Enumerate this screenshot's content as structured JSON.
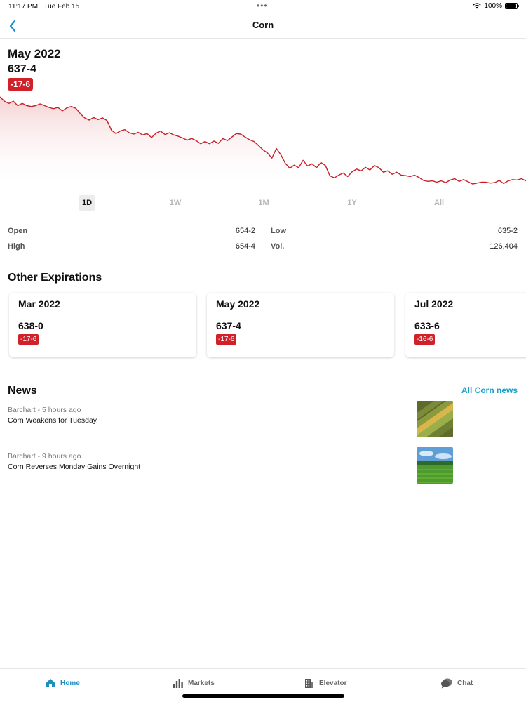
{
  "status_bar": {
    "time": "11:17 PM",
    "date": "Tue Feb 15",
    "battery": "100%"
  },
  "nav": {
    "title": "Corn",
    "back_icon": "chevron-left-icon"
  },
  "header": {
    "contract": "May 2022",
    "price": "637-4",
    "change": "-17-6"
  },
  "chart_data": {
    "type": "area",
    "color": "#c8202a",
    "values": [
      655,
      654,
      653.5,
      654,
      653,
      653.5,
      653,
      652.8,
      653,
      653.4,
      653,
      652.6,
      652.3,
      652.6,
      651.8,
      652.5,
      652.8,
      652.4,
      651.2,
      650.2,
      649.7,
      650.3,
      649.8,
      650.2,
      649.6,
      647.4,
      646.6,
      647.2,
      647.5,
      646.8,
      646.5,
      646.9,
      646.3,
      646.6,
      645.7,
      646.7,
      647.2,
      646.4,
      646.8,
      646.3,
      646,
      645.6,
      645.1,
      645.5,
      645,
      644.3,
      644.8,
      644.3,
      644.9,
      644.4,
      645.5,
      645,
      645.8,
      646.6,
      646.5,
      645.8,
      645.2,
      644.8,
      643.9,
      642.9,
      642.2,
      641,
      643.2,
      641.8,
      639.8,
      638.7,
      639.4,
      638.8,
      640.5,
      639.2,
      639.7,
      638.8,
      640,
      639.3,
      637,
      636.5,
      637.1,
      637.6,
      636.8,
      637.9,
      638.5,
      638.1,
      638.9,
      638.3,
      639.3,
      638.8,
      637.8,
      638.1,
      637.3,
      637.8,
      637.1,
      637,
      636.8,
      637.1,
      636.6,
      635.9,
      635.7,
      635.8,
      635.5,
      635.8,
      635.4,
      636,
      636.3,
      635.7,
      636.1,
      635.6,
      635.1,
      635.3,
      635.5,
      635.5,
      635.3,
      635.4,
      635.9,
      635.2,
      635.8,
      636.1,
      636,
      636.3,
      635.8
    ]
  },
  "ranges": [
    "1D",
    "1W",
    "1M",
    "1Y",
    "All"
  ],
  "active_range": "1D",
  "stats": {
    "open_label": "Open",
    "open": "654-2",
    "high_label": "High",
    "high": "654-4",
    "low_label": "Low",
    "low": "635-2",
    "vol_label": "Vol.",
    "vol": "126,404"
  },
  "expirations": {
    "title": "Other Expirations",
    "cards": [
      {
        "name": "Mar 2022",
        "price": "638-0",
        "change": "-17-6"
      },
      {
        "name": "May 2022",
        "price": "637-4",
        "change": "-17-6"
      },
      {
        "name": "Jul 2022",
        "price": "633-6",
        "change": "-16-6"
      }
    ]
  },
  "news": {
    "title": "News",
    "all_link": "All Corn news",
    "items": [
      {
        "source": "Barchart - 5 hours ago",
        "headline": "Corn Weakens for Tuesday",
        "thumb": "corn-cob-image"
      },
      {
        "source": "Barchart - 9 hours ago",
        "headline": "Corn Reverses Monday Gains Overnight",
        "thumb": "corn-field-image"
      }
    ]
  },
  "tabs": [
    {
      "label": "Home",
      "icon": "home-icon",
      "active": true
    },
    {
      "label": "Markets",
      "icon": "bar-chart-icon",
      "active": false
    },
    {
      "label": "Elevator",
      "icon": "building-icon",
      "active": false
    },
    {
      "label": "Chat",
      "icon": "chat-bubble-icon",
      "active": false
    }
  ]
}
